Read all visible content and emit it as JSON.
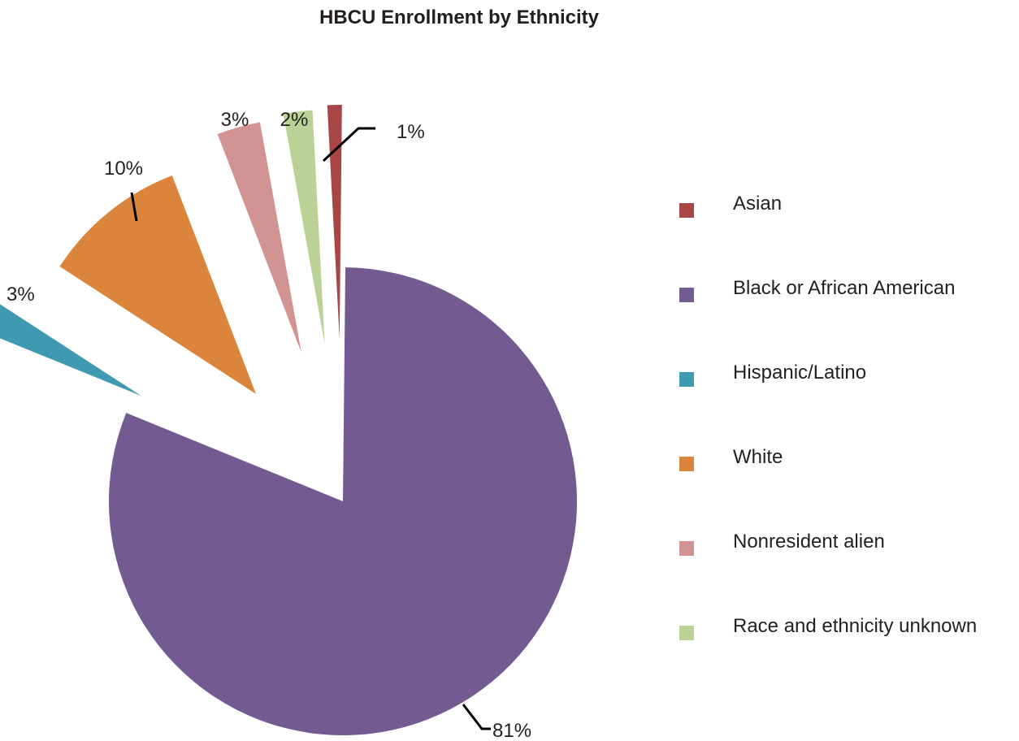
{
  "chart_data": {
    "type": "pie",
    "title": "HBCU Enrollment by Ethnicity",
    "legend_position": "right",
    "exploded": true,
    "slices": [
      {
        "label": "Asian",
        "value": 1,
        "display": "1%",
        "color": "#a84646"
      },
      {
        "label": "Black or African American",
        "value": 81,
        "display": "81%",
        "color": "#735a90"
      },
      {
        "label": "Hispanic/Latino",
        "value": 3,
        "display": "3%",
        "color": "#3f9ab1"
      },
      {
        "label": "White",
        "value": 10,
        "display": "10%",
        "color": "#da843c"
      },
      {
        "label": "Nonresident alien",
        "value": 3,
        "display": "3%",
        "color": "#d29493"
      },
      {
        "label": "Race and ethnicity unknown",
        "value": 2,
        "display": "2%",
        "color": "#bad296"
      }
    ]
  }
}
